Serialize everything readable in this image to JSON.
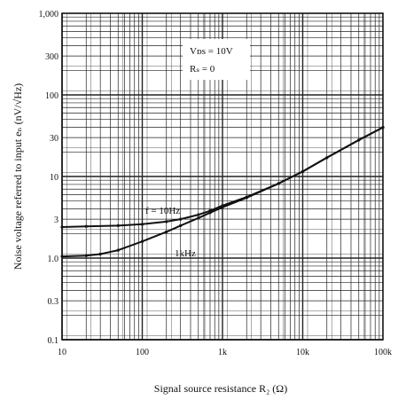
{
  "chart_data": {
    "type": "line",
    "xscale": "log",
    "yscale": "log",
    "xlim": [
      10,
      100000
    ],
    "ylim": [
      0.1,
      1000
    ],
    "grid": true,
    "xlabel": "Signal source resistance  R₂ (Ω)",
    "ylabel": "Noise voltage referred to input   eₙ  (nV/√Hz)",
    "x_ticks": [
      {
        "value": 10,
        "label": "10"
      },
      {
        "value": 100,
        "label": "100"
      },
      {
        "value": 1000,
        "label": "1k"
      },
      {
        "value": 10000,
        "label": "10k"
      },
      {
        "value": 100000,
        "label": "100k"
      }
    ],
    "y_ticks": [
      {
        "value": 0.1,
        "label": "0.1"
      },
      {
        "value": 0.3,
        "label": "0.3"
      },
      {
        "value": 1,
        "label": "1.0"
      },
      {
        "value": 3,
        "label": "3"
      },
      {
        "value": 10,
        "label": "10"
      },
      {
        "value": 30,
        "label": "30"
      },
      {
        "value": 100,
        "label": "100"
      },
      {
        "value": 300,
        "label": "300"
      },
      {
        "value": 1000,
        "label": "1,000"
      }
    ],
    "annotations": [
      "Vᴅs = 10V",
      "Rₛ = 0"
    ],
    "series": [
      {
        "name": "f = 10Hz",
        "color": "#111111",
        "x": [
          10,
          20,
          50,
          100,
          200,
          300,
          500,
          700,
          1000,
          2000,
          5000,
          10000,
          20000,
          50000,
          100000
        ],
        "y": [
          2.4,
          2.45,
          2.5,
          2.6,
          2.8,
          3.0,
          3.4,
          3.8,
          4.4,
          5.6,
          8.2,
          11.5,
          17,
          28,
          40
        ]
      },
      {
        "name": "1kHz",
        "color": "#111111",
        "x": [
          10,
          20,
          30,
          50,
          100,
          200,
          300,
          500,
          700,
          1000,
          2000,
          5000,
          10000,
          20000,
          50000,
          100000
        ],
        "y": [
          1.05,
          1.07,
          1.12,
          1.25,
          1.6,
          2.1,
          2.5,
          3.1,
          3.6,
          4.2,
          5.5,
          8.2,
          11.5,
          17,
          28,
          40
        ]
      }
    ]
  }
}
